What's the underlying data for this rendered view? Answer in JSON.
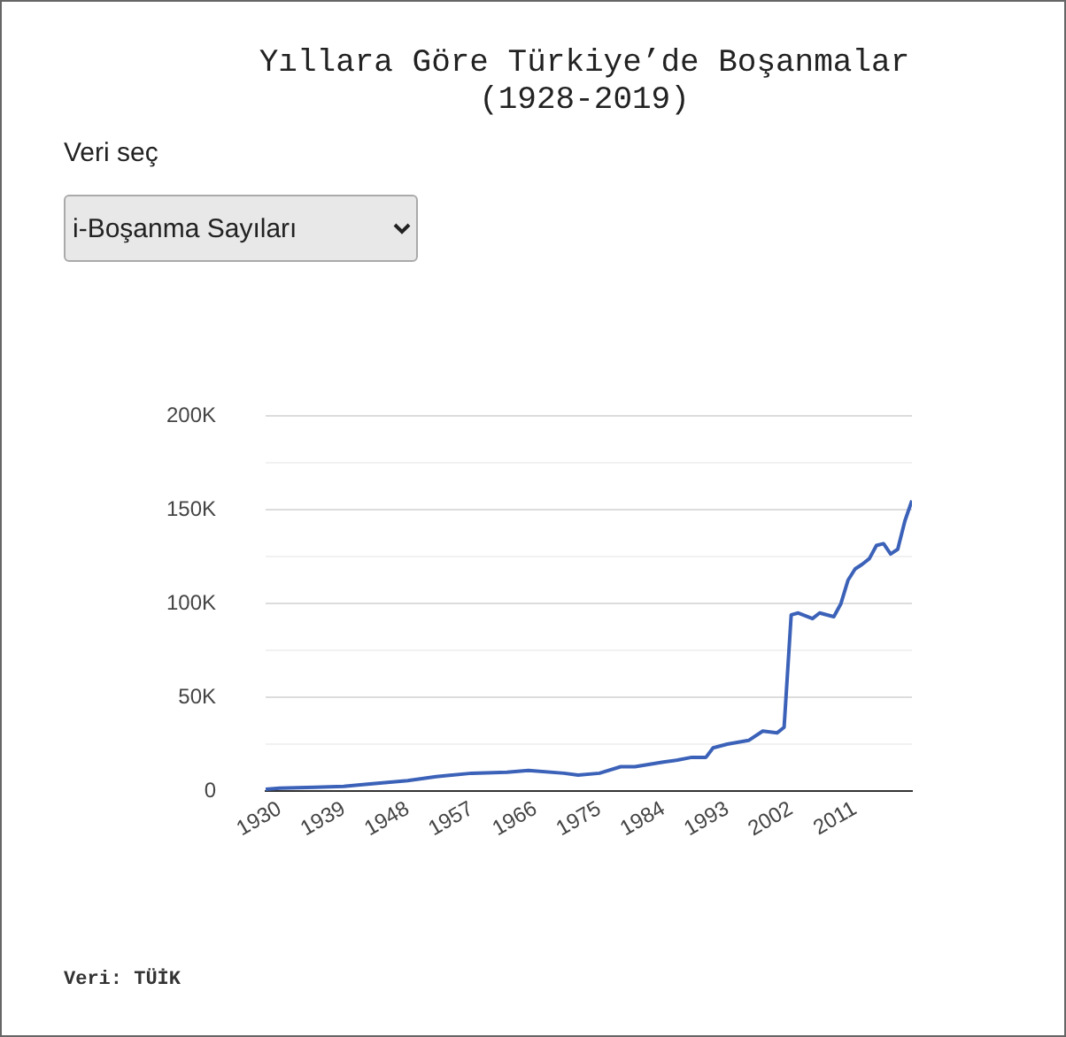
{
  "chart_data": {
    "type": "line",
    "title": "Yıllara Göre Türkiye’de Boşanmalar",
    "subtitle": "(1928-2019)",
    "annotations": [
      "Veri seç",
      "i-Boşanma Sayıları",
      "Veri: TÜİK"
    ],
    "x": [
      1928,
      1930,
      1935,
      1939,
      1942,
      1948,
      1952,
      1957,
      1962,
      1965,
      1970,
      1972,
      1975,
      1978,
      1980,
      1984,
      1986,
      1988,
      1990,
      1991,
      1993,
      1996,
      1998,
      2000,
      2001,
      2002,
      2003,
      2005,
      2006,
      2008,
      2009,
      2010,
      2011,
      2012,
      2013,
      2014,
      2015,
      2016,
      2017,
      2018,
      2019
    ],
    "series": [
      {
        "color": "#3b62b8",
        "values": [
          1000,
          1500,
          2000,
          2500,
          3500,
          5500,
          7700,
          9500,
          10000,
          11000,
          9500,
          8500,
          9500,
          13000,
          13000,
          15500,
          16500,
          18000,
          18000,
          23000,
          25000,
          27000,
          32000,
          31000,
          34000,
          94000,
          95000,
          92000,
          95000,
          93000,
          100000,
          112500,
          118500,
          121000,
          124000,
          131000,
          132000,
          126500,
          129000,
          144000,
          155000
        ]
      }
    ],
    "xlim": [
      1928,
      2019
    ],
    "xticks": [
      1930,
      1939,
      1948,
      1957,
      1966,
      1975,
      1984,
      1993,
      2002,
      2011
    ],
    "ylim": [
      0,
      200000
    ],
    "yticks": [
      0,
      {
        "value": 25000,
        "label": null
      },
      {
        "value": 50000,
        "label": "50K"
      },
      {
        "value": 75000,
        "label": null
      },
      {
        "value": 100000,
        "label": "100K"
      },
      {
        "value": 125000,
        "label": null
      },
      {
        "value": 150000,
        "label": "150K"
      },
      {
        "value": 175000,
        "label": null
      },
      {
        "value": 200000,
        "label": "200K"
      }
    ],
    "grid": "y",
    "marker": "none",
    "line_style": "solid"
  }
}
